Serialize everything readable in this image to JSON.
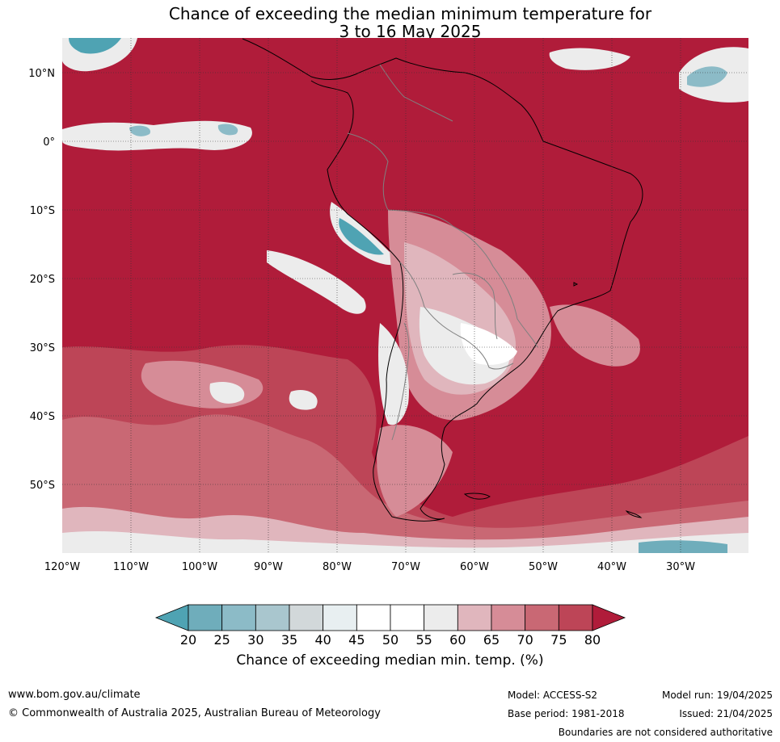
{
  "title": {
    "line1": "Chance of exceeding the median minimum temperature for",
    "line2": "3 to 16 May 2025"
  },
  "axes": {
    "lon_ticks": [
      "120°W",
      "110°W",
      "100°W",
      "90°W",
      "80°W",
      "70°W",
      "60°W",
      "50°W",
      "40°W",
      "30°W"
    ],
    "lat_ticks": [
      "10°N",
      "0°",
      "10°S",
      "20°S",
      "30°S",
      "40°S",
      "50°S"
    ]
  },
  "colorbar": {
    "labels": [
      "20",
      "25",
      "30",
      "35",
      "40",
      "45",
      "50",
      "55",
      "60",
      "65",
      "70",
      "75",
      "80"
    ],
    "colors": [
      "#4fa3b3",
      "#6fadbb",
      "#8cbbc7",
      "#a9c6ce",
      "#d2d8da",
      "#e8eff1",
      "#ffffff",
      "#ffffff",
      "#ececec",
      "#e0b6bd",
      "#d68c97",
      "#c96874",
      "#bd4557",
      "#b01c3a"
    ],
    "title": "Chance of exceeding median min. temp. (%)"
  },
  "map": {
    "land_outline_color": "#000000",
    "border_color": "#808080",
    "base_color": "#b01c3a"
  },
  "footer": {
    "website": "www.bom.gov.au/climate",
    "copyright": "© Commonwealth of Australia 2025, Australian Bureau of Meteorology",
    "model": "Model: ACCESS-S2",
    "base_period": "Base period: 1981-2018",
    "model_run": "Model run: 19/04/2025",
    "issued": "Issued: 21/04/2025",
    "disclaimer": "Boundaries are not considered authoritative"
  }
}
